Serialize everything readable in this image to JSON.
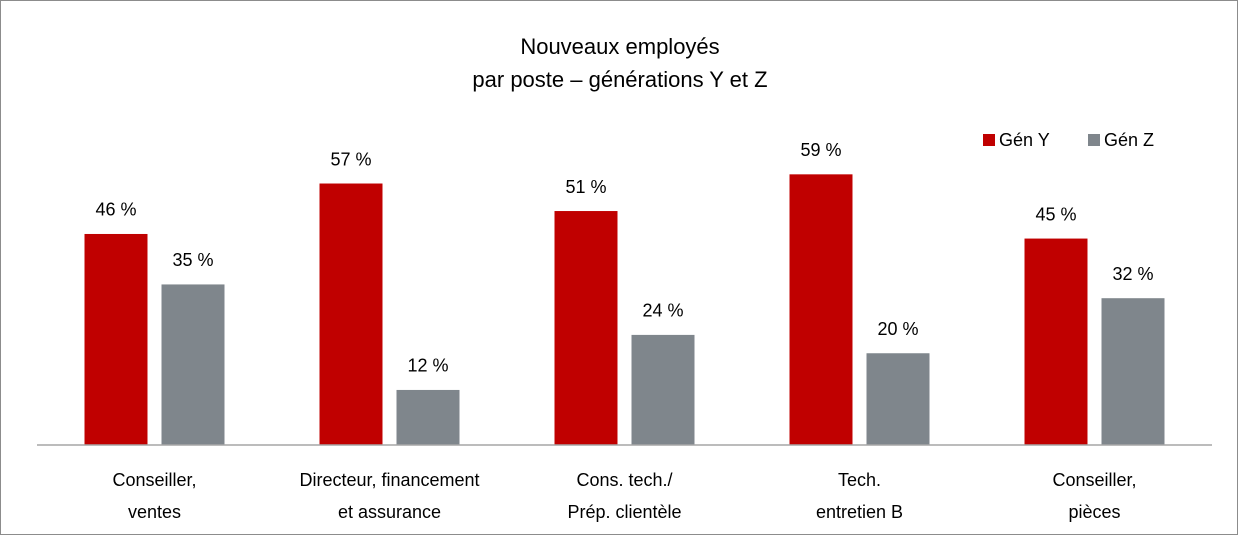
{
  "chart_data": {
    "type": "bar",
    "title": [
      "Nouveaux employés",
      "par poste – générations Y et Z"
    ],
    "categories": [
      [
        "Conseiller,",
        "ventes"
      ],
      [
        "Directeur, financement",
        "et assurance"
      ],
      [
        "Cons. tech./",
        "Prép. clientèle"
      ],
      [
        "Tech.",
        "entretien B"
      ],
      [
        "Conseiller,",
        "pièces"
      ]
    ],
    "series": [
      {
        "name": "Gén Y",
        "color": "#c00000",
        "values": [
          46,
          57,
          51,
          59,
          45
        ],
        "value_labels": [
          "46 %",
          "57 %",
          "51 %",
          "59 %",
          "45 %"
        ]
      },
      {
        "name": "Gén Z",
        "color": "#7f868c",
        "values": [
          35,
          12,
          24,
          20,
          32
        ],
        "value_labels": [
          "35 %",
          "12 %",
          "24 %",
          "20 %",
          "32 %"
        ]
      }
    ],
    "ylim": [
      0,
      80
    ],
    "legend": "top-right"
  }
}
